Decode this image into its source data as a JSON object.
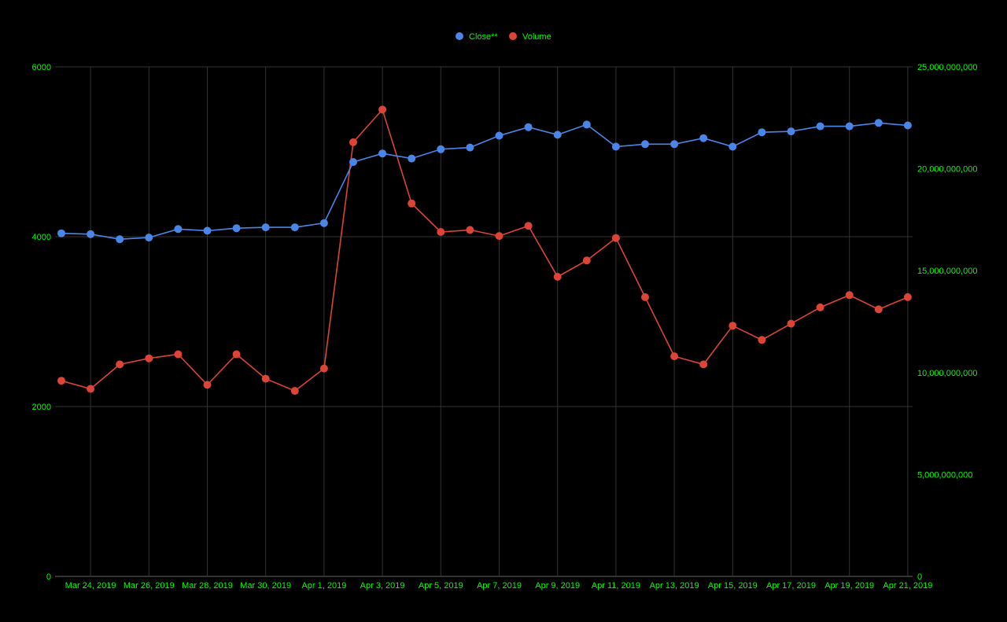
{
  "colors": {
    "background": "#000000",
    "grid": "#333333",
    "tick_text": "#00ff00",
    "close_series": "#4a86e8",
    "volume_series": "#db4437"
  },
  "chart_data": {
    "type": "line",
    "title": "",
    "legend": {
      "position": "top-center",
      "entries": [
        "Close**",
        "Volume"
      ]
    },
    "grid": true,
    "x": [
      "2019-03-23",
      "2019-03-24",
      "2019-03-25",
      "2019-03-26",
      "2019-03-27",
      "2019-03-28",
      "2019-03-29",
      "2019-03-30",
      "2019-03-31",
      "2019-04-01",
      "2019-04-02",
      "2019-04-03",
      "2019-04-04",
      "2019-04-05",
      "2019-04-06",
      "2019-04-07",
      "2019-04-08",
      "2019-04-09",
      "2019-04-10",
      "2019-04-11",
      "2019-04-12",
      "2019-04-13",
      "2019-04-14",
      "2019-04-15",
      "2019-04-16",
      "2019-04-17",
      "2019-04-18",
      "2019-04-19",
      "2019-04-20",
      "2019-04-21"
    ],
    "x_tick_labels": [
      "Mar 24, 2019",
      "Mar 26, 2019",
      "Mar 28, 2019",
      "Mar 30, 2019",
      "Apr 1, 2019",
      "Apr 3, 2019",
      "Apr 5, 2019",
      "Apr 7, 2019",
      "Apr 9, 2019",
      "Apr 11, 2019",
      "Apr 13, 2019",
      "Apr 15, 2019",
      "Apr 17, 2019",
      "Apr 19, 2019",
      "Apr 21, 2019"
    ],
    "x_tick_dates": [
      "2019-03-24",
      "2019-03-26",
      "2019-03-28",
      "2019-03-30",
      "2019-04-01",
      "2019-04-03",
      "2019-04-05",
      "2019-04-07",
      "2019-04-09",
      "2019-04-11",
      "2019-04-13",
      "2019-04-15",
      "2019-04-17",
      "2019-04-19",
      "2019-04-21"
    ],
    "y_left": {
      "range": [
        0,
        6000
      ],
      "ticks": [
        0,
        2000,
        4000,
        6000
      ],
      "tick_labels": [
        "0",
        "2000",
        "4000",
        "6000"
      ]
    },
    "y_right": {
      "range": [
        0,
        25000000000
      ],
      "ticks": [
        0,
        5000000000,
        10000000000,
        15000000000,
        20000000000,
        25000000000
      ],
      "tick_labels": [
        "0",
        "5,000,000,000",
        "10,000,000,000",
        "15,000,000,000",
        "20,000,000,000",
        "25,000,000,000"
      ]
    },
    "series": [
      {
        "name": "Close**",
        "axis": "left",
        "values": [
          4040,
          4030,
          3970,
          3990,
          4090,
          4070,
          4100,
          4110,
          4110,
          4160,
          4880,
          4980,
          4920,
          5030,
          5050,
          5190,
          5290,
          5200,
          5320,
          5060,
          5090,
          5090,
          5160,
          5060,
          5230,
          5240,
          5300,
          5300,
          5340,
          5310
        ]
      },
      {
        "name": "Volume",
        "axis": "right",
        "values": [
          9600000000,
          9200000000,
          10400000000,
          10700000000,
          10900000000,
          9400000000,
          10900000000,
          9700000000,
          9100000000,
          10200000000,
          21300000000,
          22900000000,
          18300000000,
          16900000000,
          17000000000,
          16700000000,
          17200000000,
          14700000000,
          15500000000,
          16600000000,
          13700000000,
          10800000000,
          10400000000,
          12300000000,
          11600000000,
          12400000000,
          13200000000,
          13800000000,
          13100000000,
          13700000000
        ]
      }
    ]
  }
}
